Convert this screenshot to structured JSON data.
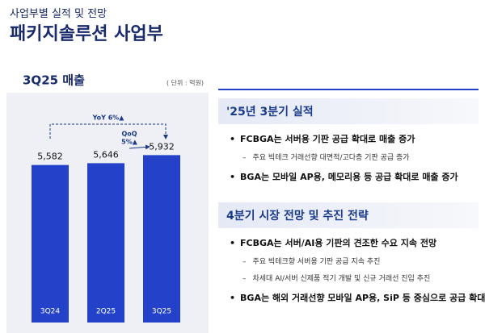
{
  "header": {
    "category": "사업부별 실적 및 전망",
    "title": "패키지솔루션 사업부"
  },
  "chart_data": {
    "type": "bar",
    "title": "3Q25 매출",
    "unit_note": "( 단위 : 억원)",
    "categories": [
      "3Q24",
      "2Q25",
      "3Q25"
    ],
    "values": [
      5582,
      5646,
      5932
    ],
    "value_labels": [
      "5,582",
      "5,646",
      "5,932"
    ],
    "color": "#2342c9",
    "ylim": [
      0,
      8000
    ],
    "annotations": [
      "YoY 6%▲",
      "QoQ",
      "5%▲"
    ]
  },
  "sections": [
    {
      "title": "'25년 3분기 실적",
      "items": [
        {
          "text": "FCBGA는 서버용 기판 공급 확대로 매출 증가",
          "subs": [
            "주요 빅테크 거래선향 대면적/고다층 기판 공급 증가"
          ]
        },
        {
          "text": "BGA는 모바일 AP용, 메모리용 등 공급 확대로 매출 증가",
          "subs": []
        }
      ]
    },
    {
      "title": "4분기 시장 전망 및 추진 전략",
      "items": [
        {
          "text": "FCBGA는 서버/AI용 기판의 견조한 수요 지속 전망",
          "subs": [
            "주요 빅테크향 서버용 기판 공급 지속 추진",
            "차세대 AI/서버 신제품 적기 개발 및 신규 거래선 진입 추진"
          ]
        },
        {
          "text": "BGA는 해외 거래선향 모바일 AP용, SiP 등 중심으로 공급 확대",
          "subs": []
        }
      ]
    }
  ]
}
